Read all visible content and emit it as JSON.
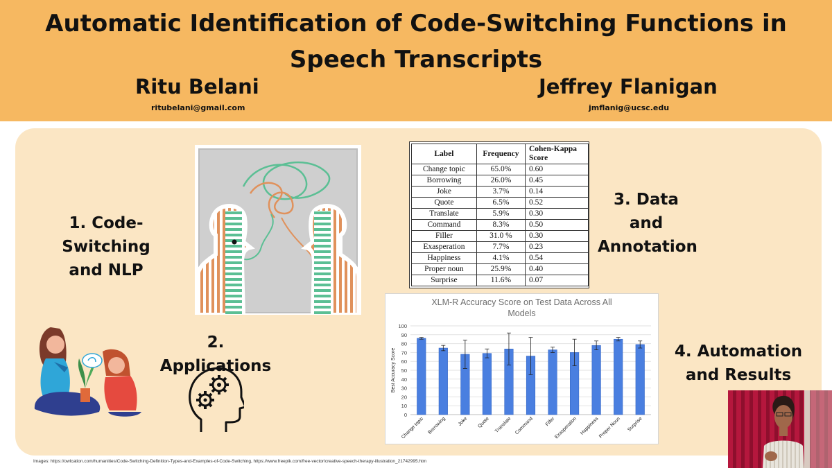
{
  "header": {
    "title_line1": "Automatic Identification of Code-Switching Functions in",
    "title_line2": "Speech Transcripts",
    "authors": [
      {
        "name": "Ritu Belani",
        "email": "ritubelani@gmail.com"
      },
      {
        "name": "Jeffrey Flanigan",
        "email": "jmflanig@ucsc.edu"
      }
    ],
    "colors": {
      "header_bg": "#f6b861",
      "panel_bg": "#fbe6c4"
    }
  },
  "sections": {
    "s1_line1": "1. Code-Switching",
    "s1_line2": "and NLP",
    "s2": "2. Applications",
    "s3_line1": "3. Data and",
    "s3_line2": "Annotation",
    "s4_line1": "4. Automation",
    "s4_line2": "and Results"
  },
  "table": {
    "headers": [
      "Label",
      "Frequency",
      "Cohen-Kappa Score"
    ],
    "rows": [
      [
        "Change topic",
        "65.0%",
        "0.60"
      ],
      [
        "Borrowing",
        "26.0%",
        "0.45"
      ],
      [
        "Joke",
        "3.7%",
        "0.14"
      ],
      [
        "Quote",
        "6.5%",
        "0.52"
      ],
      [
        "Translate",
        "5.9%",
        "0.30"
      ],
      [
        "Command",
        "8.3%",
        "0.50"
      ],
      [
        "Filler",
        "31.0 %",
        "0.30"
      ],
      [
        "Exasperation",
        "7.7%",
        "0.23"
      ],
      [
        "Happiness",
        "4.1%",
        "0.54"
      ],
      [
        "Proper noun",
        "25.9%",
        "0.40"
      ],
      [
        "Surprise",
        "11.6%",
        "0.07"
      ]
    ]
  },
  "chart_data": {
    "type": "bar",
    "title": "XLM-R Accuracy Score on Test Data Across All Models",
    "ylabel": "Best Accuracy Score",
    "xlabel": "",
    "ylim": [
      0,
      100
    ],
    "yticks": [
      0,
      10,
      20,
      30,
      40,
      50,
      60,
      70,
      80,
      90,
      100
    ],
    "grid": true,
    "categories": [
      "Change topic",
      "Borrowing",
      "Joke",
      "Quote",
      "Translate",
      "Command",
      "Filler",
      "Exasperation",
      "Happiness",
      "Proper Noun",
      "Surprise"
    ],
    "values": [
      86,
      75,
      68,
      69,
      74,
      66,
      73,
      70,
      78,
      85,
      79
    ],
    "error": [
      1,
      3,
      16,
      5,
      18,
      21,
      3,
      15,
      5,
      2,
      4
    ],
    "bar_color": "#4a7fe0"
  },
  "footer": {
    "credits": "Images: https://owlcation.com/humanities/Code-Switching-Definition-Types-and-Examples-of-Code-Switching, https://www.freepik.com/free-vector/creative-speech-therapy-illustration_21742995.htm"
  },
  "illustrations": {
    "art1": "two-heads-code-switching-illustration",
    "art2": "speech-therapy-illustration",
    "art3": "head-gears-icon",
    "webcam": "presenter-webcam"
  }
}
